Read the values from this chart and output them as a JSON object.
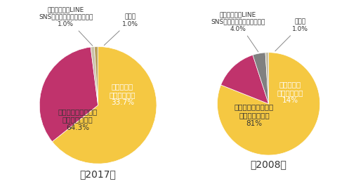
{
  "chart2017": {
    "labels": [
      "直接会って言いたい\n（言われたい）\n64.3%",
      "突然したい\n（されたい）\n33.7%",
      "",
      ""
    ],
    "values": [
      64.3,
      33.7,
      1.0,
      1.0
    ],
    "colors": [
      "#F5C842",
      "#C0336C",
      "#C8C0A8",
      "#B8A060"
    ],
    "year": "【2017】",
    "startangle": 90
  },
  "chart2008": {
    "labels": [
      "直接会って言いたい\n（言われたい）\n81%",
      "突然したい\n（されたい）\n14%",
      "",
      ""
    ],
    "values": [
      81,
      14,
      4.0,
      1.0
    ],
    "colors": [
      "#F5C842",
      "#C0336C",
      "#808080",
      "#C8C0A8"
    ],
    "year": "【2008】",
    "startangle": 90
  },
  "annotation2017": {
    "携帯メール・LINE\nSNS等でしたい（されたい）\n1.0%": [
      1.0,
      3
    ],
    "その他\n1.0%": [
      1.0,
      2
    ]
  },
  "annotation2008": {
    "携帯メール・LINE\nSNS等でしたい（されたい）\n4.0%": [
      4.0,
      3
    ],
    "その他\n1.0%": [
      1.0,
      2
    ]
  },
  "bg_color": "#ffffff",
  "year_fontsize": 10,
  "label_fontsize": 7.5
}
